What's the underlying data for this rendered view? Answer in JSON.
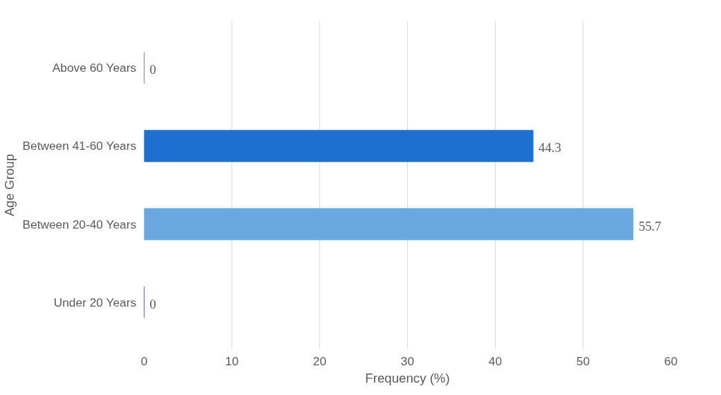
{
  "chart_data": {
    "type": "bar",
    "orientation": "horizontal",
    "xlabel": "Frequency (%)",
    "ylabel": "Age Group",
    "categories": [
      "Above 60 Years",
      "Between 41-60 Years",
      "Between 20-40 Years",
      "Under 20 Years"
    ],
    "values": [
      0,
      44.3,
      55.7,
      0
    ],
    "colors": [
      "#4a5a78",
      "#1f6fd0",
      "#6aa8e0",
      "#243a78"
    ],
    "xlim": [
      0,
      60
    ],
    "xticks": [
      0,
      10,
      20,
      30,
      40,
      50,
      60
    ],
    "grid": "x",
    "data_labels": true
  }
}
